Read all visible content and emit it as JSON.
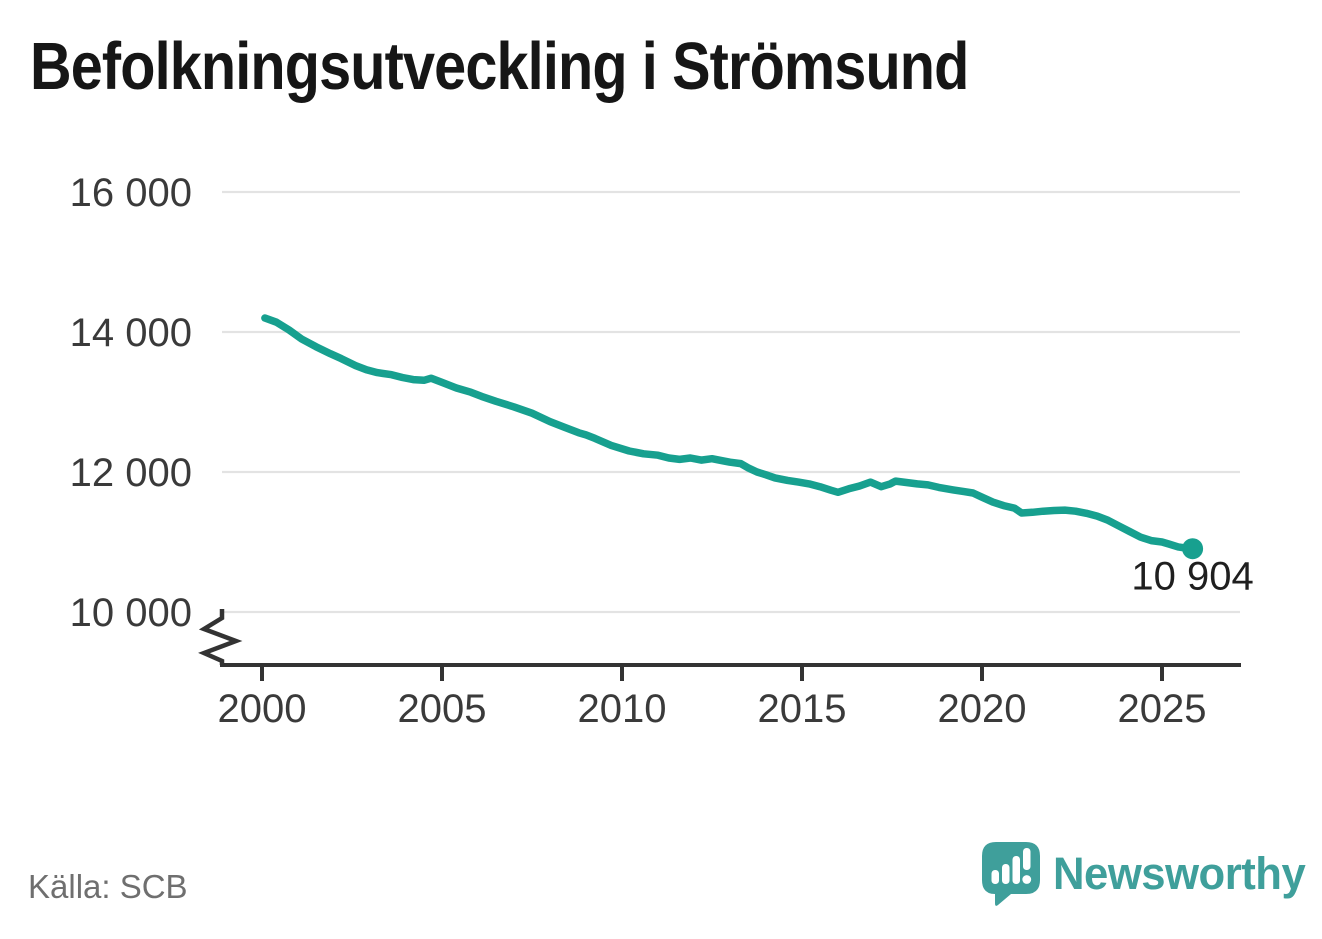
{
  "title": "Befolkningsutveckling i Strömsund",
  "source": "Källa: SCB",
  "logo": {
    "text": "Newsworthy"
  },
  "colors": {
    "line": "#17a08f",
    "end_dot": "#17a08f",
    "grid": "#e3e3e3",
    "axis": "#333333",
    "axis_text": "#3a3a3a",
    "end_label_text": "#1f1f1f",
    "title_text": "#161616",
    "source_text": "#6f6f6f",
    "logo_teal": "#3f9f9b"
  },
  "chart_data": {
    "type": "line",
    "title": "Befolkningsutveckling i Strömsund",
    "xlabel": "",
    "ylabel": "",
    "legend": "none",
    "grid": "horizontal",
    "x_axis": {
      "ticks": [
        2000,
        2005,
        2010,
        2015,
        2020,
        2025
      ],
      "range": [
        1998.9,
        2027.2
      ]
    },
    "y_axis": {
      "ticks": [
        {
          "value": 10000,
          "label": "10 000"
        },
        {
          "value": 12000,
          "label": "12 000"
        },
        {
          "value": 14000,
          "label": "14 000"
        },
        {
          "value": 16000,
          "label": "16 000"
        }
      ],
      "displayed_range": [
        10000,
        16000
      ],
      "axis_break": true
    },
    "end_point": {
      "x": 2025.85,
      "value": 10904,
      "label": "10 904"
    },
    "series": [
      {
        "points": [
          [
            2000.08,
            14200
          ],
          [
            2000.4,
            14140
          ],
          [
            2000.75,
            14030
          ],
          [
            2001.1,
            13900
          ],
          [
            2001.5,
            13790
          ],
          [
            2001.9,
            13690
          ],
          [
            2002.2,
            13620
          ],
          [
            2002.6,
            13520
          ],
          [
            2002.9,
            13460
          ],
          [
            2003.2,
            13420
          ],
          [
            2003.6,
            13390
          ],
          [
            2003.9,
            13350
          ],
          [
            2004.2,
            13320
          ],
          [
            2004.5,
            13310
          ],
          [
            2004.7,
            13340
          ],
          [
            2005.0,
            13280
          ],
          [
            2005.4,
            13200
          ],
          [
            2005.8,
            13140
          ],
          [
            2006.1,
            13080
          ],
          [
            2006.5,
            13010
          ],
          [
            2007.0,
            12930
          ],
          [
            2007.5,
            12840
          ],
          [
            2008.0,
            12720
          ],
          [
            2008.4,
            12640
          ],
          [
            2008.8,
            12560
          ],
          [
            2009.0,
            12530
          ],
          [
            2009.25,
            12480
          ],
          [
            2009.7,
            12380
          ],
          [
            2010.2,
            12300
          ],
          [
            2010.6,
            12260
          ],
          [
            2011.0,
            12240
          ],
          [
            2011.3,
            12200
          ],
          [
            2011.6,
            12180
          ],
          [
            2011.9,
            12200
          ],
          [
            2012.2,
            12170
          ],
          [
            2012.5,
            12190
          ],
          [
            2012.8,
            12160
          ],
          [
            2013.0,
            12140
          ],
          [
            2013.3,
            12120
          ],
          [
            2013.5,
            12060
          ],
          [
            2013.75,
            12000
          ],
          [
            2014.0,
            11960
          ],
          [
            2014.25,
            11915
          ],
          [
            2014.6,
            11880
          ],
          [
            2014.9,
            11855
          ],
          [
            2015.2,
            11830
          ],
          [
            2015.5,
            11790
          ],
          [
            2015.8,
            11740
          ],
          [
            2016.0,
            11710
          ],
          [
            2016.3,
            11760
          ],
          [
            2016.6,
            11800
          ],
          [
            2016.9,
            11855
          ],
          [
            2017.2,
            11790
          ],
          [
            2017.45,
            11830
          ],
          [
            2017.6,
            11870
          ],
          [
            2017.9,
            11850
          ],
          [
            2018.2,
            11830
          ],
          [
            2018.5,
            11815
          ],
          [
            2018.8,
            11780
          ],
          [
            2019.2,
            11745
          ],
          [
            2019.5,
            11720
          ],
          [
            2019.75,
            11700
          ],
          [
            2020.0,
            11640
          ],
          [
            2020.3,
            11570
          ],
          [
            2020.6,
            11520
          ],
          [
            2020.9,
            11485
          ],
          [
            2021.1,
            11415
          ],
          [
            2021.4,
            11425
          ],
          [
            2021.7,
            11440
          ],
          [
            2022.0,
            11450
          ],
          [
            2022.3,
            11455
          ],
          [
            2022.6,
            11440
          ],
          [
            2022.9,
            11410
          ],
          [
            2023.2,
            11370
          ],
          [
            2023.5,
            11310
          ],
          [
            2023.8,
            11230
          ],
          [
            2024.1,
            11150
          ],
          [
            2024.4,
            11070
          ],
          [
            2024.7,
            11020
          ],
          [
            2025.0,
            11000
          ],
          [
            2025.2,
            10970
          ],
          [
            2025.45,
            10930
          ],
          [
            2025.65,
            10915
          ],
          [
            2025.85,
            10904
          ]
        ]
      }
    ]
  }
}
